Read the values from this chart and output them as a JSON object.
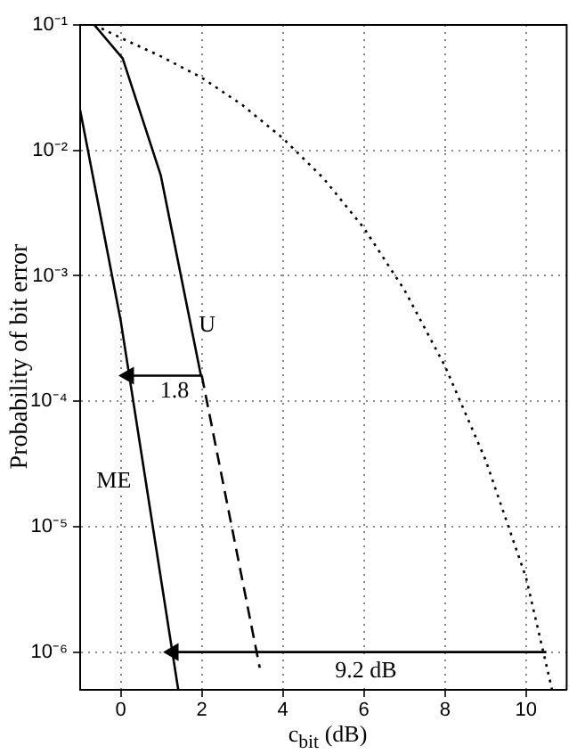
{
  "chart_data": {
    "type": "line",
    "xlabel": "c$_{bit}$ (dB)",
    "ylabel": "Probability of bit error",
    "log": "y",
    "grid": true,
    "legend": false,
    "marker": "none",
    "xlim": [
      -1,
      11
    ],
    "xticks": [
      0,
      2,
      4,
      6,
      8,
      10
    ],
    "ylim": [
      5e-07,
      0.1
    ],
    "yticks": [
      {
        "value": 0.1,
        "label": "10⁻¹"
      },
      {
        "value": 0.01,
        "label": "10⁻²"
      },
      {
        "value": 0.001,
        "label": "10⁻³"
      },
      {
        "value": 0.0001,
        "label": "10⁻⁴"
      },
      {
        "value": 1e-05,
        "label": "10⁻⁵"
      },
      {
        "value": 1e-06,
        "label": "10⁻⁶"
      }
    ],
    "series": [
      {
        "color": "#000000",
        "line_style": "solid",
        "x": [
          -1,
          0,
          1.42
        ],
        "values": [
          0.021,
          0.00044,
          5e-07
        ]
      },
      {
        "color": "#000000",
        "line_style": "solid",
        "x": [
          -0.65,
          0.05,
          0.99,
          1.98
        ],
        "values": [
          0.1,
          0.054,
          0.0063,
          0.00016
        ]
      },
      {
        "color": "#000000",
        "line_style": "dashed",
        "x": [
          2,
          3.43
        ],
        "values": [
          0.00016,
          7.5e-07
        ]
      },
      {
        "color": "#000000",
        "line_style": "dotted",
        "x": [
          -0.65,
          0,
          1,
          2,
          3,
          4,
          5,
          6,
          7,
          8,
          9,
          10,
          10.64
        ],
        "values": [
          0.1,
          0.079,
          0.056,
          0.038,
          0.023,
          0.0125,
          0.006,
          0.0024,
          0.00077,
          0.00019,
          3.4e-05,
          3.9e-06,
          5e-07
        ]
      },
      {
        "color": "#000000",
        "line_style": "solid",
        "marker": "triangle",
        "x": [
          2,
          0.2
        ],
        "values": [
          0.00016,
          0.00016
        ]
      },
      {
        "color": "#000000",
        "line_style": "solid",
        "marker": "triangle",
        "x": [
          10.5,
          1.3
        ],
        "values": [
          1e-06,
          1e-06
        ]
      }
    ],
    "annotations": [
      {
        "text": "U",
        "x": 2.13,
        "y": 0.0004
      },
      {
        "text": "ME",
        "x": -0.17,
        "y": 2.3e-05
      },
      {
        "text": "1.8",
        "x": 1.33,
        "y": 0.00012
      },
      {
        "text": "9.2 dB",
        "x": 6.05,
        "y": 7e-07
      }
    ]
  }
}
